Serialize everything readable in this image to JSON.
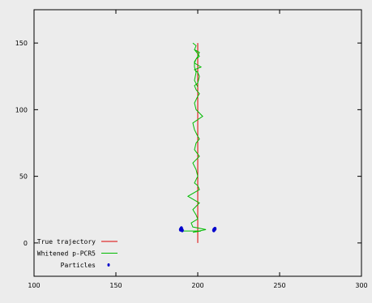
{
  "chart_data": {
    "type": "line",
    "title": "",
    "xlabel": "",
    "ylabel": "",
    "xlim": [
      100,
      300
    ],
    "ylim": [
      -25,
      175
    ],
    "xticks": [
      100,
      150,
      200,
      250,
      300
    ],
    "yticks": [
      0,
      50,
      100,
      150
    ],
    "grid": false,
    "legend_position": "bottom-left",
    "series": [
      {
        "name": "True trajectory",
        "kind": "line",
        "color": "#dd0000",
        "x": [
          200,
          200
        ],
        "y": [
          0,
          150
        ]
      },
      {
        "name": "Whitened p-PCR5",
        "kind": "line",
        "color": "#00bb00",
        "x": [
          191,
          202,
          197,
          205,
          197,
          196,
          200,
          199,
          197,
          201,
          194,
          201,
          200,
          198,
          200,
          199,
          197,
          201,
          198,
          199,
          201,
          200,
          198,
          197,
          203,
          199,
          198,
          200,
          201,
          199,
          198,
          200,
          201,
          200,
          198,
          202,
          198,
          199,
          201,
          200,
          198,
          199,
          197,
          199,
          198,
          201,
          200,
          198,
          198,
          199,
          198,
          200
        ],
        "y": [
          9,
          9,
          8,
          10,
          12,
          15,
          18,
          21,
          25,
          30,
          35,
          40,
          43,
          45,
          50,
          55,
          60,
          65,
          70,
          75,
          78,
          80,
          85,
          90,
          95,
          100,
          105,
          110,
          112,
          115,
          118,
          120,
          125,
          128,
          130,
          132,
          135,
          138,
          140,
          142,
          145,
          148,
          150,
          148,
          145,
          143,
          140,
          136,
          132,
          128,
          122,
          117
        ]
      },
      {
        "name": "Particles",
        "kind": "points",
        "color": "#0000cc",
        "x": [
          189.5,
          190,
          190.5,
          189.8,
          210,
          210.5,
          209.8
        ],
        "y": [
          10,
          11,
          9.5,
          10.5,
          10,
          10.6,
          9.5
        ]
      }
    ]
  }
}
